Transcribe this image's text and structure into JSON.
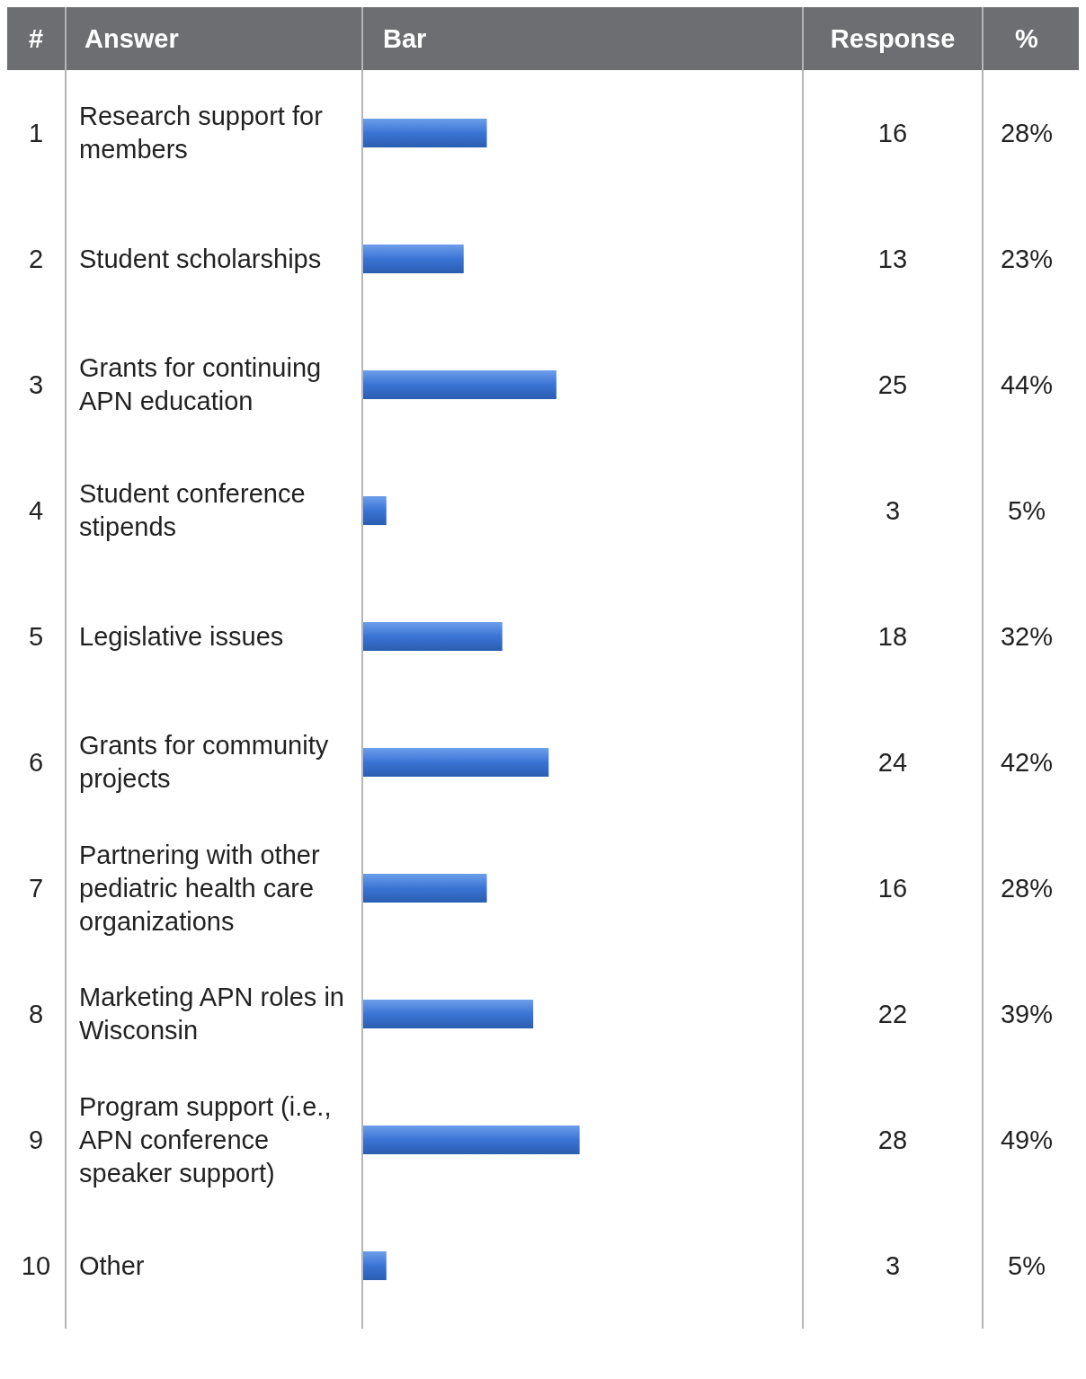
{
  "chart_data": {
    "type": "bar",
    "orientation": "horizontal",
    "ylabel": "Answer",
    "xlabel": "Bar",
    "categories": [
      "Research support for members",
      "Student scholarships",
      "Grants for continuing APN education",
      "Student conference stipends",
      "Legislative issues",
      "Grants for community projects",
      "Partnering with other pediatric health care organizations",
      "Marketing APN roles in Wisconsin",
      "Program support (i.e., APN conference speaker support)",
      "Other"
    ],
    "values": [
      16,
      13,
      25,
      3,
      18,
      24,
      16,
      22,
      28,
      3
    ],
    "color": "#3a74d4",
    "data_labels": true,
    "xlim": [
      0,
      57
    ],
    "tick_labels": false,
    "annotations": [
      "#",
      "Response",
      "%",
      "1",
      "2",
      "3",
      "4",
      "5",
      "6",
      "7",
      "8",
      "9",
      "10",
      "28%",
      "23%",
      "44%",
      "5%",
      "32%",
      "42%",
      "28%",
      "39%",
      "49%",
      "5%"
    ]
  }
}
